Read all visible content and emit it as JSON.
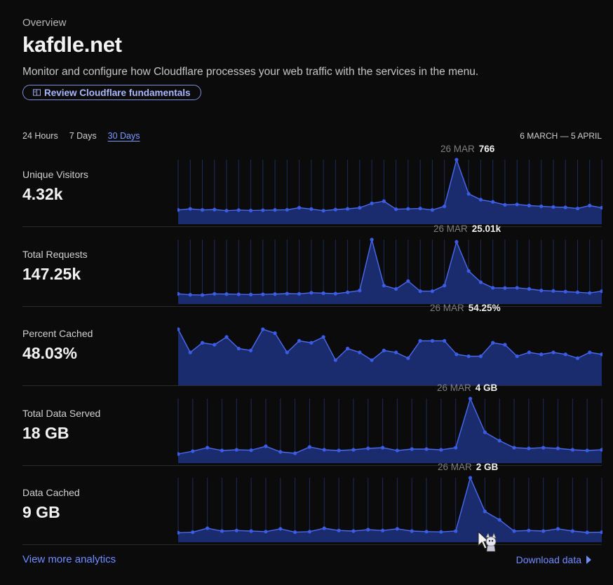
{
  "header": {
    "overline": "Overview",
    "title": "kafdle.net",
    "description": "Monitor and configure how Cloudflare processes your web traffic with the services in the menu.",
    "fundamentals_button": "Review Cloudflare fundamentals"
  },
  "time_range": {
    "options": [
      "24 Hours",
      "7 Days",
      "30 Days"
    ],
    "selected": "30 Days",
    "date_range": "6 MARCH — 5 APRIL"
  },
  "colors": {
    "accent": "#6f8dff",
    "area_fill": "#1a2c6e",
    "line": "#4a6af0"
  },
  "metrics": [
    {
      "label": "Unique Visitors",
      "value": "4.32k",
      "peak_date": "26 MAR",
      "peak_value": "766",
      "series": [
        80,
        95,
        80,
        85,
        70,
        78,
        72,
        76,
        80,
        82,
        110,
        92,
        70,
        85,
        95,
        110,
        170,
        200,
        90,
        95,
        100,
        80,
        130,
        766,
        300,
        220,
        190,
        150,
        155,
        140,
        130,
        120,
        115,
        100,
        140,
        110
      ]
    },
    {
      "label": "Total Requests",
      "value": "147.25k",
      "peak_date": "26 MAR",
      "peak_value": "25.01k",
      "series": [
        800,
        400,
        300,
        800,
        700,
        600,
        500,
        600,
        700,
        900,
        800,
        1300,
        1100,
        900,
        1500,
        2300,
        25000,
        4500,
        3000,
        6500,
        2000,
        2000,
        4500,
        24000,
        11000,
        6000,
        3500,
        3400,
        3500,
        3000,
        2300,
        2100,
        1800,
        1500,
        1200,
        2000
      ]
    },
    {
      "label": "Percent Cached",
      "value": "48.03%",
      "peak_date": "26 MAR",
      "peak_value": "54.25%",
      "series": [
        54,
        48,
        50.5,
        50,
        52,
        49,
        48.5,
        54,
        53,
        48,
        51,
        50.5,
        52,
        46,
        49,
        48,
        46,
        48.5,
        48,
        46.5,
        51,
        51,
        51,
        47.5,
        47,
        47,
        50.5,
        50,
        47,
        48,
        47.5,
        48,
        47.5,
        46.5,
        48,
        47.5
      ]
    },
    {
      "label": "Total Data Served",
      "value": "18 GB",
      "peak_date": "26 MAR",
      "peak_value": "4 GB",
      "series": [
        0.05,
        0.25,
        0.5,
        0.3,
        0.35,
        0.32,
        0.6,
        0.2,
        0.1,
        0.55,
        0.35,
        0.3,
        0.35,
        0.45,
        0.5,
        0.3,
        0.4,
        0.4,
        0.35,
        0.5,
        4.0,
        1.6,
        1.0,
        0.5,
        0.45,
        0.5,
        0.45,
        0.35,
        0.3,
        0.35
      ]
    },
    {
      "label": "Data Cached",
      "value": "9 GB",
      "peak_date": "26 MAR",
      "peak_value": "2 GB",
      "series": [
        0.04,
        0.06,
        0.2,
        0.1,
        0.12,
        0.1,
        0.08,
        0.18,
        0.06,
        0.08,
        0.2,
        0.12,
        0.1,
        0.15,
        0.12,
        0.18,
        0.1,
        0.08,
        0.07,
        0.1,
        2.0,
        0.8,
        0.5,
        0.1,
        0.12,
        0.1,
        0.18,
        0.1,
        0.05,
        0.06
      ]
    }
  ],
  "footer": {
    "view_more": "View more analytics",
    "download": "Download data"
  }
}
